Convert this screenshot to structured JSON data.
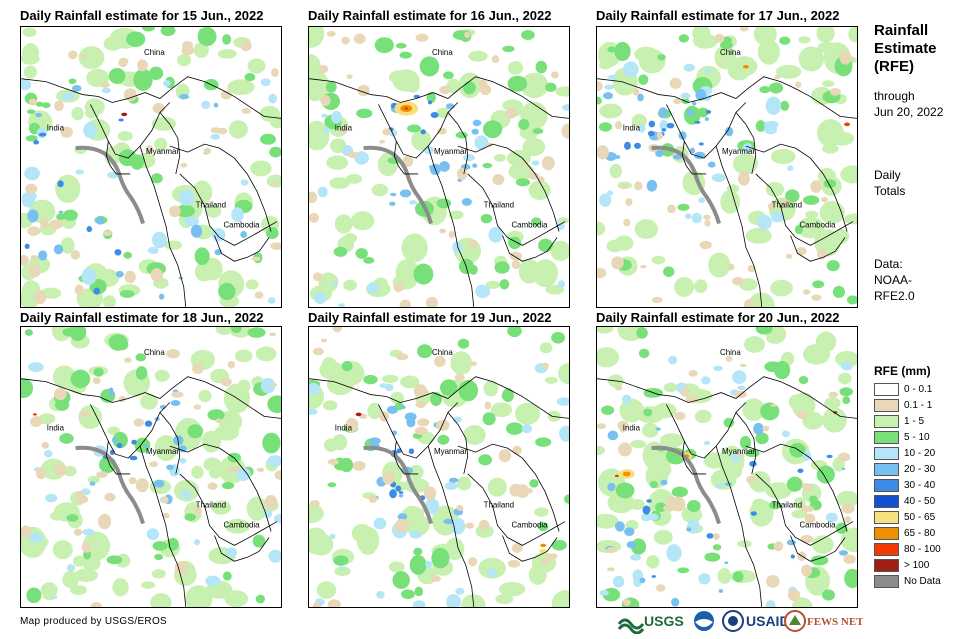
{
  "panels": [
    {
      "title": "Daily Rainfall estimate for 15 Jun., 2022"
    },
    {
      "title": "Daily Rainfall estimate for 16 Jun., 2022"
    },
    {
      "title": "Daily Rainfall estimate for 17 Jun., 2022"
    },
    {
      "title": "Daily Rainfall estimate for 18 Jun., 2022"
    },
    {
      "title": "Daily Rainfall estimate for 19 Jun., 2022"
    },
    {
      "title": "Daily Rainfall estimate for 20 Jun., 2022"
    }
  ],
  "map_labels": {
    "china": "China",
    "india": "India",
    "myanmar": "Myanmar",
    "thailand": "Thailand",
    "cambodia": "Cambodia"
  },
  "sidebar": {
    "title_line1": "Rainfall",
    "title_line2": "Estimate",
    "title_line3": "(RFE)",
    "through_line1": "through",
    "through_line2": "Jun 20, 2022",
    "daily_line1": "Daily",
    "daily_line2": "Totals",
    "data_line1": "Data:",
    "data_line2": "NOAA-",
    "data_line3": "RFE2.0"
  },
  "legend": {
    "title": "RFE (mm)",
    "items": [
      {
        "label": "0 - 0.1",
        "color": "#ffffff"
      },
      {
        "label": "0.1 - 1",
        "color": "#e8d8b8"
      },
      {
        "label": "1 - 5",
        "color": "#c8f0b0"
      },
      {
        "label": "5 - 10",
        "color": "#78e078"
      },
      {
        "label": "10 - 20",
        "color": "#b4e6f8"
      },
      {
        "label": "20 - 30",
        "color": "#78c0f0"
      },
      {
        "label": "30 - 40",
        "color": "#3c8ce6"
      },
      {
        "label": "40 - 50",
        "color": "#1450d2"
      },
      {
        "label": "50 - 65",
        "color": "#f8e080"
      },
      {
        "label": "65 - 80",
        "color": "#f09000"
      },
      {
        "label": "80 - 100",
        "color": "#f03c00"
      },
      {
        "label": "> 100",
        "color": "#a01e14"
      },
      {
        "label": "No Data",
        "color": "#8c8c8c"
      }
    ]
  },
  "credit": "Map produced by USGS/EROS",
  "logos": {
    "usgs": "USGS",
    "usaid": "USAID",
    "fewsnet": "FEWS NET"
  }
}
